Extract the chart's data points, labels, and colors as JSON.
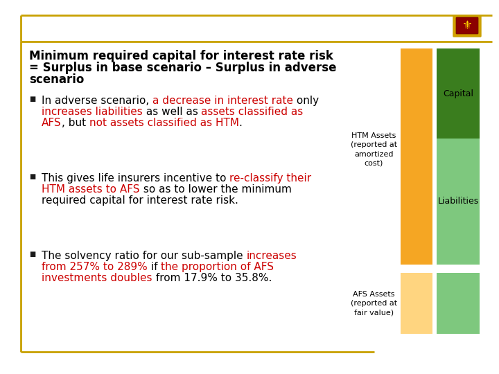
{
  "title_line1": "Minimum required capital for interest rate risk",
  "title_line2": "= Surplus in base scenario – Surplus in adverse",
  "title_line3": "scenario",
  "bullet1": [
    {
      "text": "In adverse scenario, ",
      "color": "#000000"
    },
    {
      "text": "a decrease in interest rate",
      "color": "#cc0000"
    },
    {
      "text": " only\n",
      "color": "#000000"
    },
    {
      "text": "increases liabilities",
      "color": "#cc0000"
    },
    {
      "text": " as well as ",
      "color": "#000000"
    },
    {
      "text": "assets classified as\n",
      "color": "#cc0000"
    },
    {
      "text": "AFS",
      "color": "#cc0000"
    },
    {
      "text": ", but ",
      "color": "#000000"
    },
    {
      "text": "not assets classified as HTM",
      "color": "#cc0000"
    },
    {
      "text": ".",
      "color": "#000000"
    }
  ],
  "bullet2": [
    {
      "text": "This gives life insurers incentive to ",
      "color": "#000000"
    },
    {
      "text": "re-classify their\nHTM assets to AFS",
      "color": "#cc0000"
    },
    {
      "text": " so as to lower the minimum\nrequired capital for interest rate risk.",
      "color": "#000000"
    }
  ],
  "bullet3": [
    {
      "text": "The solvency ratio for our sub-sample ",
      "color": "#000000"
    },
    {
      "text": "increases\nfrom 257% to 289%",
      "color": "#cc0000"
    },
    {
      "text": " if ",
      "color": "#000000"
    },
    {
      "text": "the proportion of AFS\ninvestments doubles",
      "color": "#cc0000"
    },
    {
      "text": " from 17.9% to 35.8%.",
      "color": "#000000"
    }
  ],
  "border_color": "#c8a000",
  "bg_color": "#ffffff",
  "font_family": "DejaVu Sans",
  "title_fontsize": 12,
  "bullet_fontsize": 11,
  "label_fontsize": 8,
  "orange_color": "#f5a623",
  "light_orange_color": "#ffd580",
  "dark_green_color": "#3a7d1e",
  "light_green_color": "#7ec87e",
  "label_htm": "HTM Assets\n(reported at\namortized\ncost)",
  "label_afs": "AFS Assets\n(reported at\nfair value)",
  "label_capital": "Capital",
  "label_liabilities": "Liabilities"
}
